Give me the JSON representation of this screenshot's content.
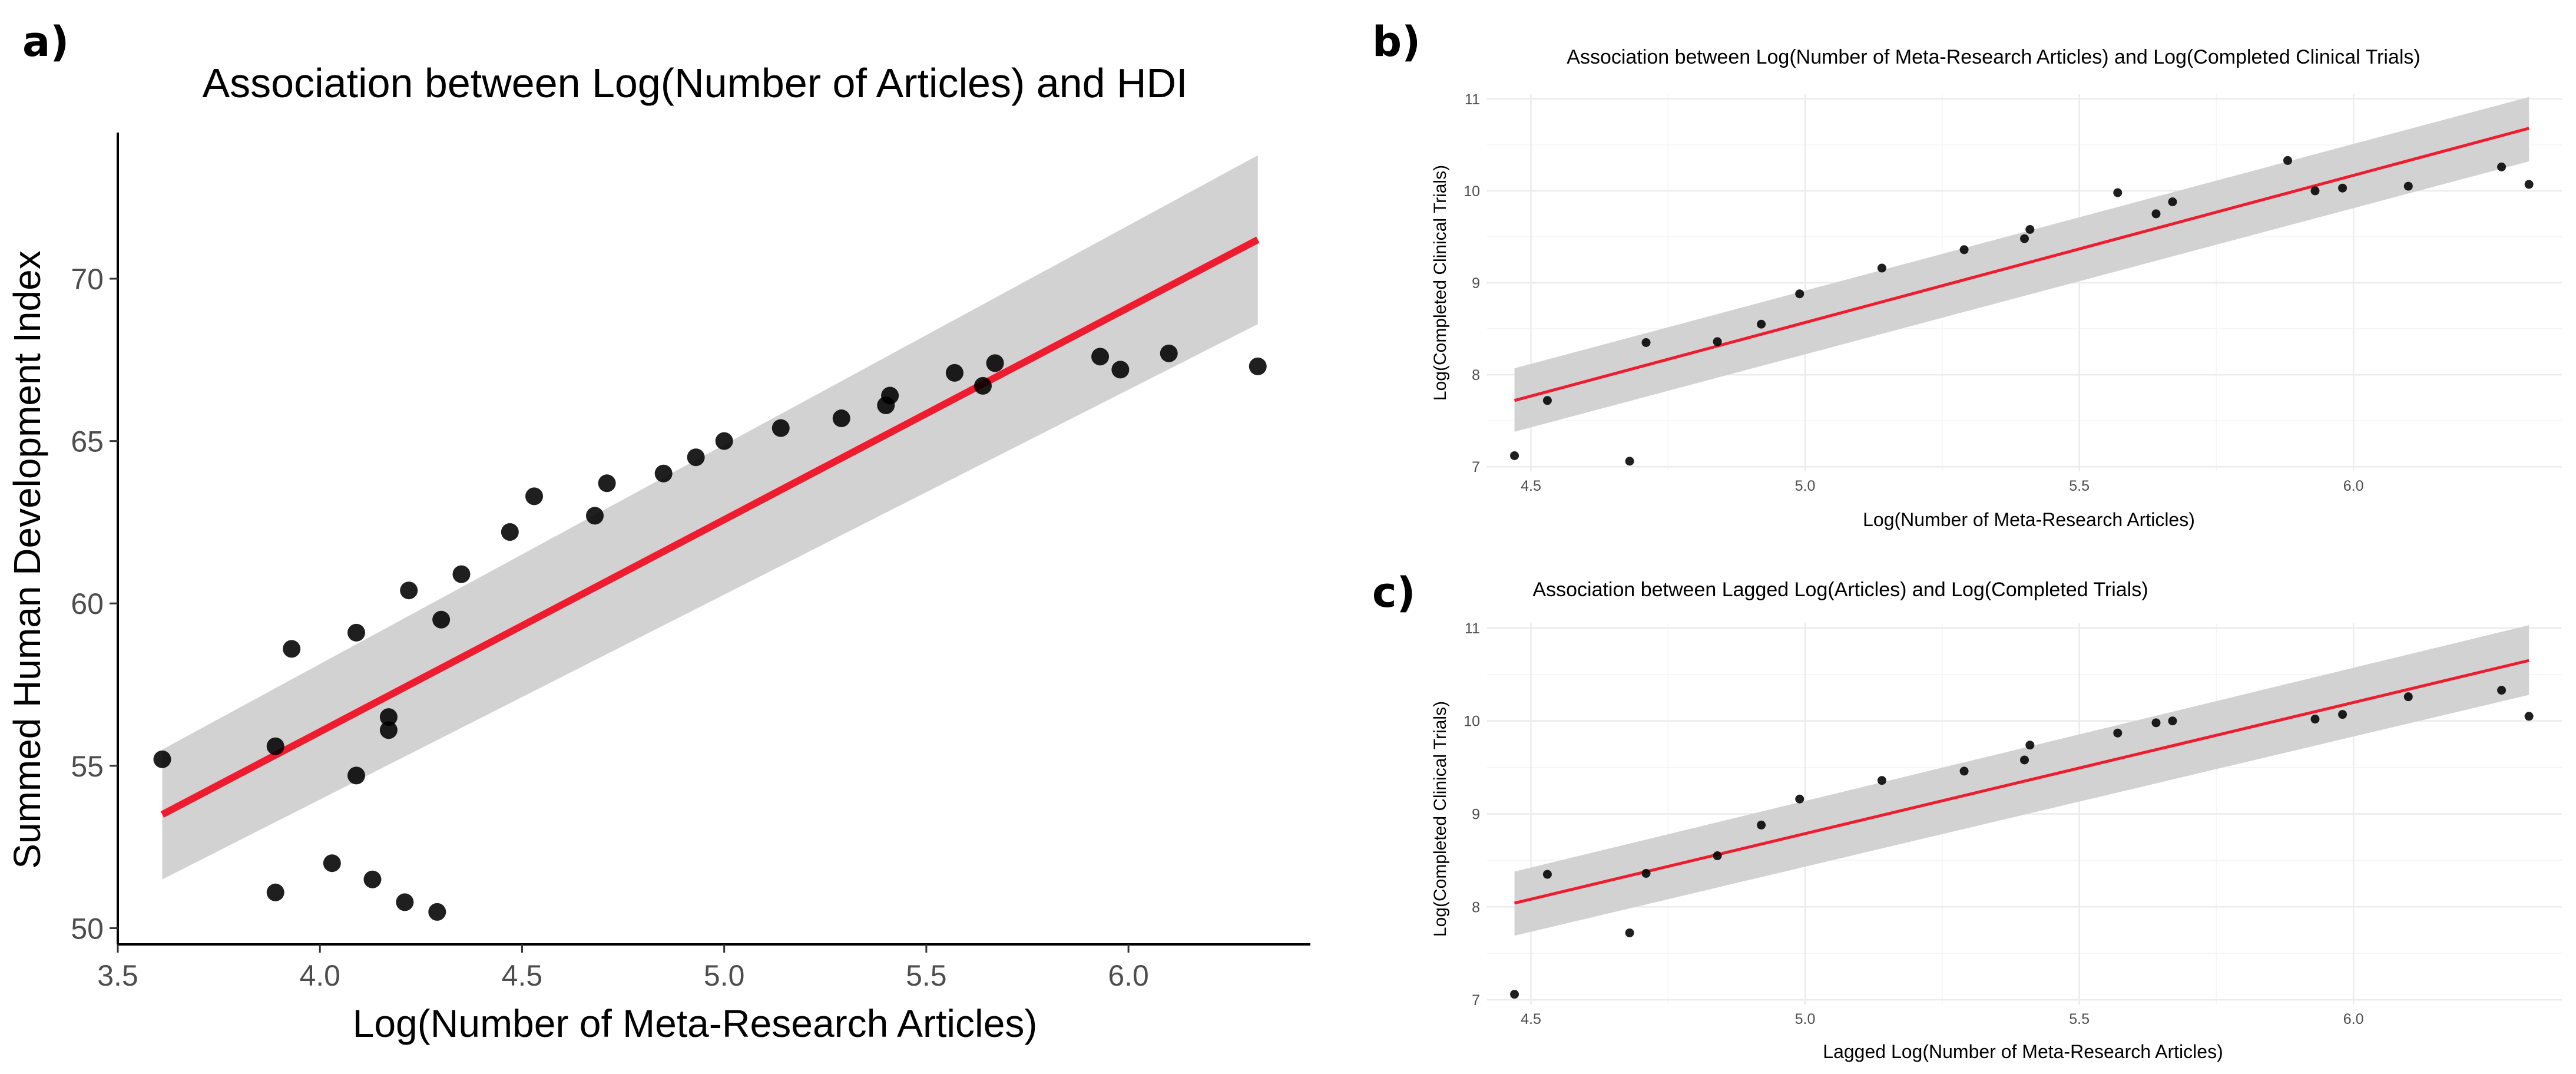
{
  "chart_data": [
    {
      "panel": "a)",
      "type": "scatter",
      "title": "Association between Log(Number of Articles) and HDI",
      "xlabel": "Log(Number of Meta-Research Articles)",
      "ylabel": "Summed Human Development Index",
      "xlim": [
        3.5,
        6.45
      ],
      "ylim": [
        49.5,
        74.5
      ],
      "xticks": [
        "3.5",
        "4.0",
        "4.5",
        "5.0",
        "5.5",
        "6.0"
      ],
      "yticks": [
        "50",
        "55",
        "60",
        "65",
        "70"
      ],
      "grid": false,
      "points": [
        [
          3.61,
          55.2
        ],
        [
          3.89,
          55.6
        ],
        [
          3.89,
          51.1
        ],
        [
          3.93,
          58.6
        ],
        [
          4.03,
          52.0
        ],
        [
          4.09,
          59.1
        ],
        [
          4.09,
          54.7
        ],
        [
          4.13,
          51.5
        ],
        [
          4.17,
          56.5
        ],
        [
          4.17,
          56.1
        ],
        [
          4.21,
          50.8
        ],
        [
          4.22,
          60.4
        ],
        [
          4.29,
          50.5
        ],
        [
          4.3,
          59.5
        ],
        [
          4.35,
          60.9
        ],
        [
          4.47,
          62.2
        ],
        [
          4.53,
          63.3
        ],
        [
          4.68,
          62.7
        ],
        [
          4.71,
          63.7
        ],
        [
          4.85,
          64.0
        ],
        [
          4.93,
          64.5
        ],
        [
          5.0,
          65.0
        ],
        [
          5.14,
          65.4
        ],
        [
          5.29,
          65.7
        ],
        [
          5.4,
          66.1
        ],
        [
          5.41,
          66.4
        ],
        [
          5.57,
          67.1
        ],
        [
          5.64,
          66.7
        ],
        [
          5.67,
          67.4
        ],
        [
          5.93,
          67.6
        ],
        [
          5.98,
          67.2
        ],
        [
          6.1,
          67.7
        ],
        [
          6.32,
          67.3
        ]
      ],
      "fit": {
        "x": [
          3.61,
          6.32
        ],
        "y": [
          53.5,
          71.2
        ],
        "ci_lower": [
          51.5,
          68.6
        ],
        "ci_upper": [
          55.5,
          73.8
        ]
      }
    },
    {
      "panel": "b)",
      "type": "scatter",
      "title": "Association between Log(Number of Meta-Research Articles) and Log(Completed Clinical Trials)",
      "xlabel": "Log(Number of Meta-Research Articles)",
      "ylabel": "Log(Completed Clinical Trials)",
      "xlim": [
        4.42,
        6.38
      ],
      "ylim": [
        6.95,
        11.05
      ],
      "xticks": [
        "4.5",
        "5.0",
        "5.5",
        "6.0"
      ],
      "yticks": [
        "7",
        "8",
        "9",
        "10",
        "11"
      ],
      "grid": true,
      "points": [
        [
          4.47,
          7.12
        ],
        [
          4.53,
          7.72
        ],
        [
          4.68,
          7.06
        ],
        [
          4.71,
          8.35
        ],
        [
          4.84,
          8.36
        ],
        [
          4.92,
          8.55
        ],
        [
          4.99,
          8.88
        ],
        [
          5.14,
          9.16
        ],
        [
          5.29,
          9.36
        ],
        [
          5.4,
          9.48
        ],
        [
          5.41,
          9.58
        ],
        [
          5.57,
          9.98
        ],
        [
          5.64,
          9.75
        ],
        [
          5.67,
          9.88
        ],
        [
          5.88,
          10.33
        ],
        [
          5.93,
          10.0
        ],
        [
          5.98,
          10.03
        ],
        [
          6.1,
          10.05
        ],
        [
          6.27,
          10.26
        ],
        [
          6.32,
          10.07
        ]
      ],
      "fit": {
        "x": [
          4.47,
          6.32
        ],
        "y": [
          7.72,
          10.68
        ],
        "ci_lower": [
          7.38,
          10.32
        ],
        "ci_upper": [
          8.07,
          11.02
        ]
      }
    },
    {
      "panel": "c)",
      "type": "scatter",
      "title": "Association between Lagged Log(Articles) and Log(Completed Trials)",
      "xlabel": "Lagged Log(Number of Meta-Research Articles)",
      "ylabel": "Log(Completed Clinical Trials)",
      "xlim": [
        4.42,
        6.38
      ],
      "ylim": [
        6.95,
        11.05
      ],
      "xticks": [
        "4.5",
        "5.0",
        "5.5",
        "6.0"
      ],
      "yticks": [
        "7",
        "8",
        "9",
        "10",
        "11"
      ],
      "grid": true,
      "points": [
        [
          4.47,
          7.06
        ],
        [
          4.53,
          8.35
        ],
        [
          4.68,
          7.72
        ],
        [
          4.71,
          8.36
        ],
        [
          4.84,
          8.55
        ],
        [
          4.92,
          8.88
        ],
        [
          4.99,
          9.16
        ],
        [
          5.14,
          9.36
        ],
        [
          5.29,
          9.46
        ],
        [
          5.4,
          9.58
        ],
        [
          5.41,
          9.74
        ],
        [
          5.57,
          9.87
        ],
        [
          5.64,
          9.98
        ],
        [
          5.67,
          10.0
        ],
        [
          5.93,
          10.02
        ],
        [
          5.98,
          10.07
        ],
        [
          6.1,
          10.26
        ],
        [
          6.27,
          10.33
        ],
        [
          6.32,
          10.05
        ]
      ],
      "fit": {
        "x": [
          4.47,
          6.32
        ],
        "y": [
          8.04,
          10.65
        ],
        "ci_lower": [
          7.69,
          10.28
        ],
        "ci_upper": [
          8.38,
          11.03
        ]
      }
    }
  ],
  "colors": {
    "fit_line": "#ee1c2e",
    "ci_band": "#d2d2d2",
    "point": "#000000",
    "grid": "#ebebeb",
    "axis": "#000000"
  }
}
